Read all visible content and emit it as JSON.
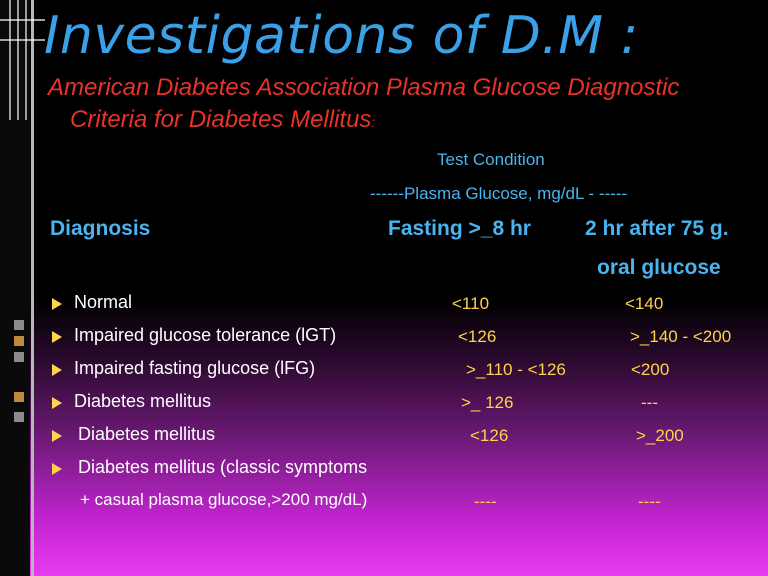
{
  "title": "Investigations of D.M :",
  "subtitle": {
    "line1": "American Diabetes Association Plasma Glucose Diagnostic",
    "line2": "Criteria for Diabetes Mellitus",
    "colon": ":"
  },
  "header": {
    "test_condition": "Test Condition",
    "plasma_glucose": "------Plasma Glucose, mg/dL - -----",
    "diagnosis": "Diagnosis",
    "fasting": "Fasting >_8 hr",
    "two_hr_line1": "2 hr after 75 g.",
    "two_hr_line2": "oral glucose"
  },
  "rows": [
    {
      "label": "Normal",
      "fasting": "<110",
      "two_hr": "<140"
    },
    {
      "label": "Impaired glucose tolerance (lGT)",
      "fasting": "<126",
      "two_hr": ">_140 - <200"
    },
    {
      "label": "Impaired fasting glucose (lFG)",
      "fasting": ">_110 - <126",
      "two_hr": "<200"
    },
    {
      "label": "Diabetes mellitus",
      "fasting": ">_ 126",
      "two_hr": "---"
    },
    {
      "label": "Diabetes mellitus",
      "fasting": "<126",
      "two_hr": ">_200"
    },
    {
      "label": "Diabetes mellitus (classic symptoms",
      "label2": "+ casual plasma glucose,>200 mg/dL)",
      "fasting": "----",
      "two_hr": "----"
    }
  ],
  "colors": {
    "title": "#3aa0e8",
    "subtitle": "#e8322a",
    "values": "#ffd34a",
    "header": "#4ab4ee"
  }
}
